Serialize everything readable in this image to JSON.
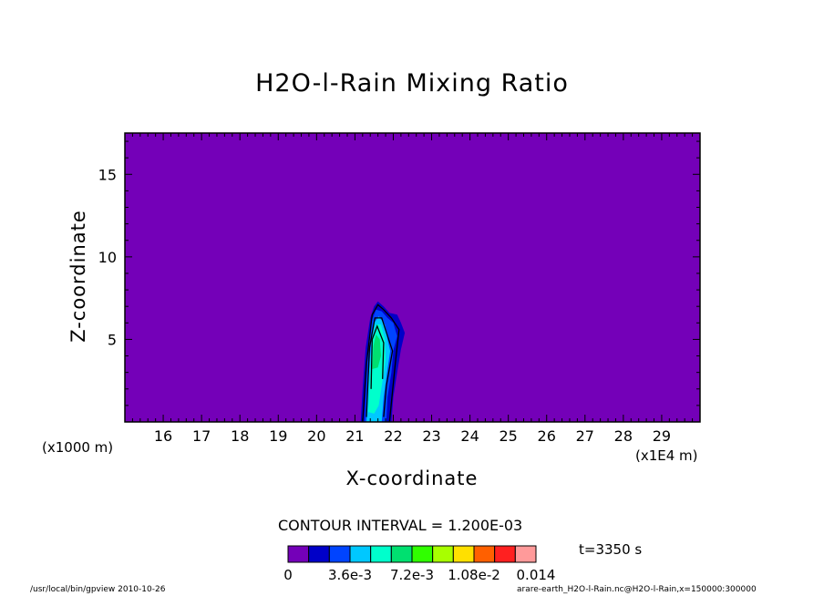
{
  "title": "H2O-l-Rain Mixing Ratio",
  "footer": {
    "left": "/usr/local/bin/gpview  2010-10-26",
    "right": "arare-earth_H2O-l-Rain.nc@H2O-l-Rain,x=150000:300000"
  },
  "time_label": "t=3350 s",
  "contour_interval_label": "CONTOUR INTERVAL = 1.200E-03",
  "colors": {
    "background_level": "#7400b8",
    "levels": [
      "#7400b8",
      "#0000c8",
      "#0044ff",
      "#00c8ff",
      "#00ffcc",
      "#00e070",
      "#30ff00",
      "#a8ff00",
      "#ffe000",
      "#ff6000",
      "#ff2020",
      "#ff9a9a"
    ]
  },
  "chart_data": {
    "type": "heatmap",
    "title": "H2O-l-Rain Mixing Ratio",
    "xlabel": "X-coordinate",
    "ylabel": "Z-coordinate",
    "x_unit": "(x1E4 m)",
    "y_unit": "(x1000 m)",
    "xlim": [
      15.0,
      30.0
    ],
    "ylim": [
      0.0,
      17.5
    ],
    "x_ticks": [
      16,
      17,
      18,
      19,
      20,
      21,
      22,
      23,
      24,
      25,
      26,
      27,
      28,
      29
    ],
    "y_ticks": [
      5,
      10,
      15
    ],
    "grid": false,
    "colorbar": {
      "levels": [
        0,
        0.0012,
        0.0024,
        0.0036,
        0.0048,
        0.006,
        0.0072,
        0.0084,
        0.0096,
        0.0108,
        0.012,
        0.0132,
        0.014
      ],
      "tick_labels": [
        "0",
        "3.6e-3",
        "7.2e-3",
        "1.08e-2",
        "0.014"
      ],
      "tick_values": [
        0,
        0.0036,
        0.0072,
        0.0108,
        0.014
      ]
    },
    "contour_interval": 0.0012,
    "filled_regions": [
      {
        "level": 1,
        "points": [
          [
            21.15,
            0
          ],
          [
            21.2,
            2.0
          ],
          [
            21.28,
            4.5
          ],
          [
            21.4,
            6.3
          ],
          [
            21.5,
            7.0
          ],
          [
            21.6,
            7.3
          ],
          [
            21.75,
            7.0
          ],
          [
            21.9,
            6.6
          ],
          [
            22.1,
            6.5
          ],
          [
            22.2,
            6.0
          ],
          [
            22.3,
            5.4
          ],
          [
            22.2,
            4.4
          ],
          [
            22.1,
            3.0
          ],
          [
            22.0,
            1.5
          ],
          [
            21.95,
            0
          ]
        ]
      },
      {
        "level": 2,
        "points": [
          [
            21.25,
            0
          ],
          [
            21.3,
            2.5
          ],
          [
            21.35,
            4.8
          ],
          [
            21.45,
            6.2
          ],
          [
            21.55,
            6.8
          ],
          [
            21.7,
            6.7
          ],
          [
            21.85,
            6.3
          ],
          [
            22.0,
            6.0
          ],
          [
            22.1,
            5.2
          ],
          [
            22.0,
            4.3
          ],
          [
            21.95,
            3.0
          ],
          [
            21.85,
            1.5
          ],
          [
            21.82,
            0
          ]
        ]
      },
      {
        "level": 3,
        "points": [
          [
            21.3,
            0
          ],
          [
            21.35,
            2.5
          ],
          [
            21.42,
            4.8
          ],
          [
            21.5,
            6.0
          ],
          [
            21.62,
            6.4
          ],
          [
            21.78,
            5.9
          ],
          [
            21.85,
            5.0
          ],
          [
            21.92,
            4.3
          ],
          [
            21.85,
            3.2
          ],
          [
            21.75,
            1.5
          ],
          [
            21.7,
            0
          ]
        ]
      },
      {
        "level": 4,
        "points": [
          [
            21.35,
            0.6
          ],
          [
            21.4,
            3.0
          ],
          [
            21.45,
            5.0
          ],
          [
            21.55,
            5.9
          ],
          [
            21.68,
            5.9
          ],
          [
            21.78,
            5.0
          ],
          [
            21.8,
            3.8
          ],
          [
            21.72,
            2.5
          ],
          [
            21.62,
            1.0
          ],
          [
            21.5,
            0.5
          ]
        ]
      },
      {
        "level": 5,
        "points": [
          [
            21.45,
            3.2
          ],
          [
            21.48,
            4.6
          ],
          [
            21.55,
            5.3
          ],
          [
            21.65,
            5.0
          ],
          [
            21.68,
            4.0
          ],
          [
            21.6,
            3.3
          ]
        ]
      }
    ],
    "contour_lines": [
      {
        "level": 1,
        "points": [
          [
            21.2,
            0
          ],
          [
            21.3,
            3.5
          ],
          [
            21.45,
            6.5
          ],
          [
            21.6,
            7.1
          ],
          [
            21.75,
            6.8
          ],
          [
            21.95,
            6.3
          ],
          [
            22.15,
            5.6
          ],
          [
            22.05,
            3.5
          ],
          [
            21.9,
            0
          ]
        ]
      },
      {
        "level": 2,
        "points": [
          [
            21.3,
            0.3
          ],
          [
            21.38,
            4.5
          ],
          [
            21.52,
            6.3
          ],
          [
            21.7,
            6.3
          ],
          [
            21.85,
            5.2
          ],
          [
            21.98,
            4.3
          ],
          [
            21.82,
            2.2
          ],
          [
            21.75,
            0.3
          ]
        ]
      },
      {
        "level": 3,
        "points": [
          [
            21.42,
            2.0
          ],
          [
            21.45,
            5.0
          ],
          [
            21.58,
            5.8
          ],
          [
            21.75,
            4.8
          ],
          [
            21.72,
            2.6
          ]
        ]
      }
    ]
  }
}
